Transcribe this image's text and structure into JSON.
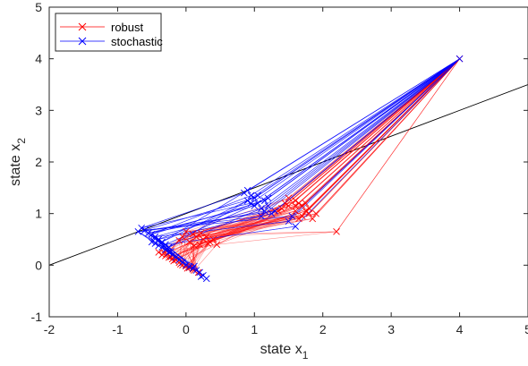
{
  "chart_data": {
    "type": "line",
    "xlabel": "state x",
    "xlabel_sub": "1",
    "ylabel": "state x",
    "ylabel_sub": "2",
    "xlim": [
      -2,
      5
    ],
    "ylim": [
      -1,
      5
    ],
    "xticks": [
      "-2",
      "-1",
      "0",
      "1",
      "2",
      "3",
      "4",
      "5"
    ],
    "yticks": [
      "-1",
      "0",
      "1",
      "2",
      "3",
      "4",
      "5"
    ],
    "legend_position": "top-left",
    "constraint_line": {
      "x": [
        -2,
        5
      ],
      "y": [
        0,
        3.5
      ],
      "color": "#000000"
    },
    "series": [
      {
        "name": "robust",
        "color": "#ff0000",
        "marker": "x",
        "start": [
          4,
          4
        ],
        "intermediate_samples": [
          [
            2.2,
            0.65
          ],
          [
            1.85,
            0.9
          ],
          [
            1.8,
            1.0
          ],
          [
            1.75,
            1.05
          ],
          [
            1.7,
            1.15
          ],
          [
            1.65,
            1.2
          ],
          [
            1.6,
            1.25
          ],
          [
            1.5,
            1.3
          ],
          [
            1.45,
            1.2
          ],
          [
            1.4,
            1.1
          ],
          [
            1.55,
            0.95
          ],
          [
            1.6,
            1.05
          ],
          [
            1.7,
            0.95
          ],
          [
            1.8,
            1.1
          ],
          [
            1.9,
            1.0
          ],
          [
            1.5,
            1.15
          ],
          [
            1.35,
            1.05
          ],
          [
            1.65,
            0.9
          ],
          [
            1.75,
            1.2
          ],
          [
            1.6,
            1.15
          ]
        ],
        "third_samples": [
          [
            0.45,
            0.4
          ],
          [
            0.35,
            0.45
          ],
          [
            0.25,
            0.5
          ],
          [
            0.15,
            0.55
          ],
          [
            0.05,
            0.45
          ],
          [
            0.1,
            0.6
          ],
          [
            0.2,
            0.4
          ],
          [
            0.3,
            0.55
          ],
          [
            0.4,
            0.5
          ],
          [
            0.0,
            0.65
          ],
          [
            -0.05,
            0.55
          ],
          [
            0.12,
            0.38
          ],
          [
            0.22,
            0.62
          ],
          [
            0.32,
            0.42
          ],
          [
            -0.1,
            0.48
          ]
        ],
        "cluster": [
          [
            -0.35,
            0.2
          ],
          [
            -0.3,
            0.18
          ],
          [
            -0.25,
            0.15
          ],
          [
            -0.2,
            0.12
          ],
          [
            -0.15,
            0.1
          ],
          [
            -0.1,
            0.05
          ],
          [
            -0.05,
            0.0
          ],
          [
            0.0,
            -0.02
          ],
          [
            0.05,
            -0.05
          ],
          [
            0.1,
            -0.08
          ],
          [
            -0.4,
            0.25
          ],
          [
            -0.28,
            0.22
          ],
          [
            -0.18,
            0.08
          ],
          [
            -0.08,
            0.02
          ],
          [
            0.02,
            -0.06
          ],
          [
            0.12,
            -0.1
          ],
          [
            0.18,
            -0.14
          ],
          [
            -0.22,
            0.16
          ],
          [
            -0.32,
            0.24
          ],
          [
            0.08,
            -0.03
          ]
        ]
      },
      {
        "name": "stochastic",
        "color": "#0000ff",
        "marker": "x",
        "start": [
          4,
          4
        ],
        "intermediate_samples": [
          [
            0.85,
            1.4
          ],
          [
            0.9,
            1.45
          ],
          [
            0.95,
            1.35
          ],
          [
            1.0,
            1.3
          ],
          [
            1.05,
            1.2
          ],
          [
            1.1,
            1.1
          ],
          [
            1.15,
            1.05
          ],
          [
            1.2,
            1.15
          ],
          [
            1.25,
            1.0
          ],
          [
            1.3,
            1.05
          ],
          [
            0.95,
            1.2
          ],
          [
            1.05,
            1.35
          ],
          [
            1.15,
            1.25
          ],
          [
            1.55,
            0.95
          ],
          [
            1.6,
            0.75
          ],
          [
            1.5,
            0.85
          ],
          [
            1.0,
            1.15
          ],
          [
            0.9,
            1.25
          ],
          [
            1.2,
            1.3
          ],
          [
            1.1,
            0.95
          ]
        ],
        "third_samples": [
          [
            -0.65,
            0.72
          ],
          [
            -0.6,
            0.68
          ],
          [
            -0.55,
            0.62
          ],
          [
            -0.7,
            0.65
          ],
          [
            -0.5,
            0.6
          ],
          [
            -0.45,
            0.55
          ],
          [
            -0.4,
            0.5
          ],
          [
            -0.35,
            0.45
          ],
          [
            -0.3,
            0.4
          ],
          [
            -0.25,
            0.35
          ]
        ],
        "cluster": [
          [
            -0.45,
            0.42
          ],
          [
            -0.4,
            0.38
          ],
          [
            -0.35,
            0.35
          ],
          [
            -0.3,
            0.3
          ],
          [
            -0.25,
            0.25
          ],
          [
            -0.2,
            0.2
          ],
          [
            -0.15,
            0.15
          ],
          [
            -0.1,
            0.1
          ],
          [
            -0.05,
            0.05
          ],
          [
            0.0,
            0.0
          ],
          [
            0.05,
            -0.03
          ],
          [
            0.1,
            -0.06
          ],
          [
            0.15,
            -0.1
          ],
          [
            0.2,
            -0.14
          ],
          [
            0.25,
            -0.2
          ],
          [
            0.3,
            -0.26
          ],
          [
            -0.5,
            0.45
          ],
          [
            -0.22,
            0.27
          ],
          [
            0.12,
            -0.02
          ],
          [
            0.22,
            -0.22
          ]
        ]
      }
    ]
  }
}
